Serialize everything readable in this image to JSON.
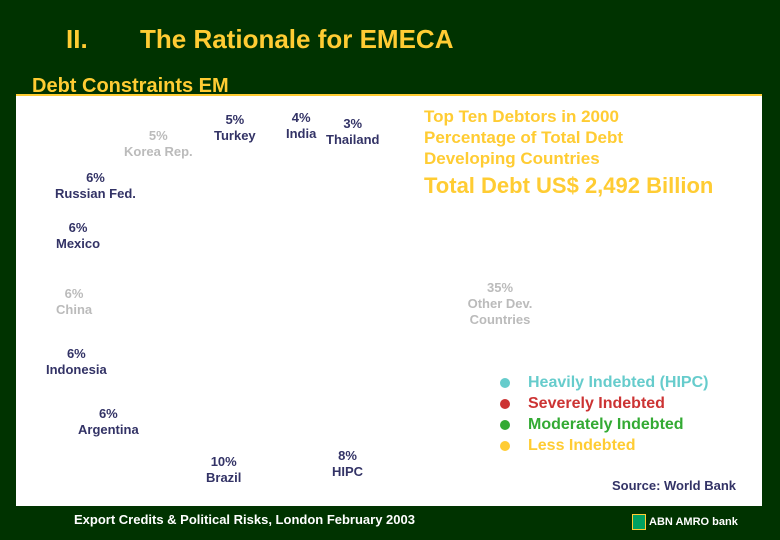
{
  "header": {
    "section_number": "II.",
    "title": "The Rationale for EMECA",
    "subtitle": "Debt Constraints EM"
  },
  "chart_data": {
    "type": "pie",
    "slices": [
      {
        "label": "Korea Rep.",
        "pct_text": "5%",
        "value": 5
      },
      {
        "label": "Turkey",
        "pct_text": "5%",
        "value": 5
      },
      {
        "label": "India",
        "pct_text": "4%",
        "value": 4
      },
      {
        "label": "Thailand",
        "pct_text": "3%",
        "value": 3
      },
      {
        "label": "Russian  Fed.",
        "pct_text": "6%",
        "value": 6
      },
      {
        "label": "Mexico",
        "pct_text": "6%",
        "value": 6
      },
      {
        "label": "China",
        "pct_text": "6%",
        "value": 6
      },
      {
        "label": "Indonesia",
        "pct_text": "6%",
        "value": 6
      },
      {
        "label": "Argentina",
        "pct_text": "6%",
        "value": 6
      },
      {
        "label": "Brazil",
        "pct_text": "10%",
        "value": 10
      },
      {
        "label": "HIPC",
        "pct_text": "8%",
        "value": 8
      },
      {
        "label": "Other Dev. Countries",
        "pct_text": "35%",
        "value": 35
      }
    ]
  },
  "info": {
    "line1": "Top Ten Debtors in 2000",
    "line2": "Percentage of Total Debt",
    "line3": "Developing Countries",
    "total": "Total Debt US$ 2,492 Billion"
  },
  "legend": {
    "items": [
      {
        "label": "Heavily Indebted (HIPC)",
        "color": "#66cccc"
      },
      {
        "label": "Severely Indebted",
        "color": "#cc3333"
      },
      {
        "label": "Moderately Indebted",
        "color": "#33aa33"
      },
      {
        "label": "Less Indebted",
        "color": "#ffcc33"
      }
    ]
  },
  "source": "Source: World Bank",
  "footer": "Export Credits & Political Risks, London February 2003",
  "brand": "ABN AMRO bank",
  "colors": {
    "background": "#003300",
    "accent": "#ffcc33",
    "label_dark": "#333366"
  }
}
